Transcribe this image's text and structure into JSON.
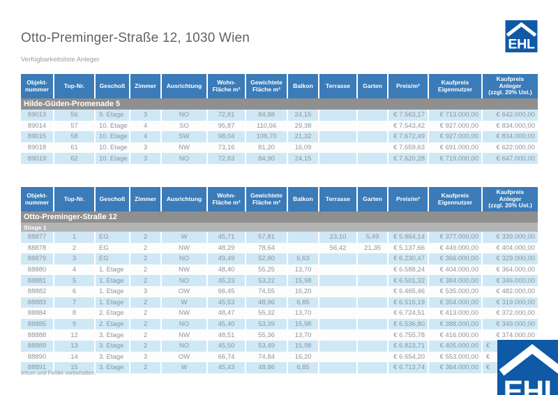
{
  "page": {
    "title": "Otto-Preminger-Straße 12, 1030 Wien",
    "subtitle": "Verfügbarkeitsliste Anleger",
    "footer": "Irrtum und Fehler vorbehalten.",
    "logo_text": "EHL"
  },
  "colors": {
    "header_blue": "#3a7bb8",
    "row_alt_blue": "#cfe8f6",
    "section_band_gray": "#8f8f8f",
    "subsection_band_gray": "#b4b4b4",
    "logo_blue": "#0f59a6"
  },
  "columns": [
    "Objekt-\nnummer",
    "Top-Nr.",
    "Geschoß",
    "Zimmer",
    "Ausrichtung",
    "Wohn-\nFläche m²",
    "Gewichtete\nFläche m²",
    "Balkon",
    "Terrasse",
    "Garten",
    "Preis/m²",
    "Kaufpreis\nEigennutzer",
    "Kaufpreis\nAnleger\n(zzgl. 20% Ust.)"
  ],
  "tables": [
    {
      "section": "Hilde-Güden-Promenade 5",
      "subsection": null,
      "rows": [
        [
          "89013",
          "56",
          "9. Etage",
          "3",
          "NO",
          "72,81",
          "84,88",
          "24,15",
          "",
          "",
          "€ 7.563,17",
          "€ 713.000,00",
          "€ 642.000,00"
        ],
        [
          "89014",
          "57",
          "10. Etage",
          "4",
          "SO",
          "95,87",
          "110,56",
          "29,38",
          "",
          "",
          "€ 7.543,42",
          "€ 927.000,00",
          "€ 834.000,00"
        ],
        [
          "89015",
          "58",
          "10. Etage",
          "4",
          "SW",
          "98,04",
          "108,70",
          "21,32",
          "",
          "",
          "€ 7.672,49",
          "€ 927.000,00",
          "€ 834.000,00"
        ],
        [
          "89018",
          "61",
          "10. Etage",
          "3",
          "NW",
          "73,16",
          "81,20",
          "16,09",
          "",
          "",
          "€ 7.659,63",
          "€ 691.000,00",
          "€ 622.000,00"
        ],
        [
          "89019",
          "62",
          "10. Etage",
          "3",
          "NO",
          "72,83",
          "84,90",
          "24,15",
          "",
          "",
          "€ 7.620,28",
          "€ 719.000,00",
          "€ 647.000,00"
        ]
      ]
    },
    {
      "section": "Otto-Preminger-Straße 12",
      "subsection": "Stiege 1",
      "rows": [
        [
          "88877",
          "1",
          "EG",
          "2",
          "W",
          "45,71",
          "57,81",
          "",
          "23,10",
          "5,49",
          "€ 5.864,14",
          "€ 377.000,00",
          "€ 339.000,00"
        ],
        [
          "88878",
          "2",
          "EG",
          "2",
          "NW",
          "48,29",
          "78,64",
          "",
          "56,42",
          "21,35",
          "€ 5.137,66",
          "€ 449.000,00",
          "€ 404.000,00"
        ],
        [
          "88879",
          "3",
          "EG",
          "2",
          "NO",
          "49,49",
          "52,80",
          "6,63",
          "",
          "",
          "€ 6.230,47",
          "€ 366.000,00",
          "€ 329.000,00"
        ],
        [
          "88880",
          "4",
          "1. Etage",
          "2",
          "NW",
          "48,40",
          "55,25",
          "13,70",
          "",
          "",
          "€ 6.588,24",
          "€ 404.000,00",
          "€ 364.000,00"
        ],
        [
          "88881",
          "5",
          "1. Etage",
          "2",
          "NO",
          "45,23",
          "53,22",
          "15,98",
          "",
          "",
          "€ 6.501,32",
          "€ 384.000,00",
          "€ 346.000,00"
        ],
        [
          "88882",
          "6",
          "1. Etage",
          "3",
          "OW",
          "66,45",
          "74,55",
          "16,20",
          "",
          "",
          "€ 6.465,46",
          "€ 535.000,00",
          "€ 482.000,00"
        ],
        [
          "88883",
          "7",
          "1. Etage",
          "2",
          "W",
          "45,53",
          "48,96",
          "6,85",
          "",
          "",
          "€ 6.516,19",
          "€ 354.000,00",
          "€ 319.000,00"
        ],
        [
          "88884",
          "8",
          "2. Etage",
          "2",
          "NW",
          "48,47",
          "55,32",
          "13,70",
          "",
          "",
          "€ 6.724,51",
          "€ 413.000,00",
          "€ 372.000,00"
        ],
        [
          "88885",
          "9",
          "2. Etage",
          "2",
          "NO",
          "45,40",
          "53,39",
          "15,98",
          "",
          "",
          "€ 6.536,80",
          "€ 388.000,00",
          "€ 349.000,00"
        ],
        [
          "88888",
          "12",
          "3. Etage",
          "2",
          "NW",
          "48,51",
          "55,36",
          "13,70",
          "",
          "",
          "€ 6.755,78",
          "€ 416.000,00",
          "€ 374.000,00"
        ],
        [
          "88889",
          "13",
          "3. Etage",
          "2",
          "NO",
          "45,50",
          "53,49",
          "15,98",
          "",
          "",
          "€ 6.823,71",
          "€ 405.000,00",
          "€"
        ],
        [
          "88890",
          "14",
          "3. Etage",
          "3",
          "OW",
          "66,74",
          "74,84",
          "16,20",
          "",
          "",
          "€ 6.654,20",
          "€ 553.000,00",
          "€"
        ],
        [
          "88891",
          "15",
          "3. Etage",
          "2",
          "W",
          "45,43",
          "48,86",
          "6,85",
          "",
          "",
          "€ 6.713,74",
          "€ 364.000,00",
          "€"
        ]
      ]
    }
  ]
}
